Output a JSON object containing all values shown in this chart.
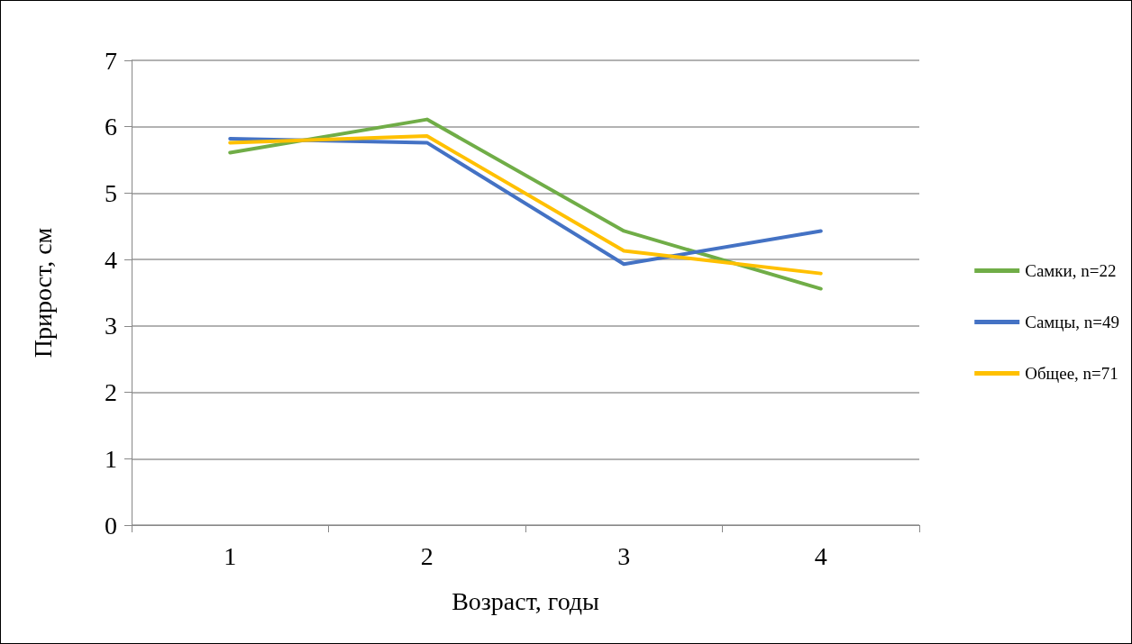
{
  "chart_data": {
    "type": "line",
    "xlabel": "Возраст, годы",
    "ylabel": "Прирост, см",
    "categories": [
      "1",
      "2",
      "3",
      "4"
    ],
    "series": [
      {
        "name": "Самки, n=22",
        "color": "#70ad47",
        "values": [
          5.61,
          6.11,
          4.43,
          3.56
        ]
      },
      {
        "name": "Самцы, n=49",
        "color": "#4472c4",
        "values": [
          5.82,
          5.76,
          3.93,
          4.43
        ]
      },
      {
        "name": "Общее, n=71",
        "color": "#ffc000",
        "values": [
          5.76,
          5.86,
          4.13,
          3.79
        ]
      }
    ],
    "ylim": [
      0,
      7
    ],
    "yticks": [
      0,
      1,
      2,
      3,
      4,
      5,
      6,
      7
    ],
    "grid": "y",
    "legend": "right",
    "marker": "none",
    "line_style": "solid"
  }
}
